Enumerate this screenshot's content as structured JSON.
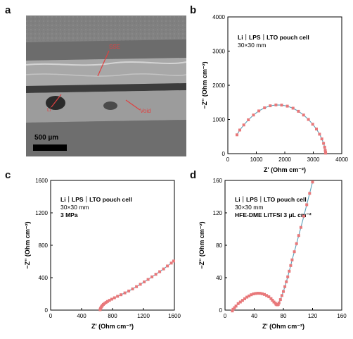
{
  "panels": {
    "a": {
      "letter": "a",
      "labels": {
        "sse": "SSE",
        "void": "Void",
        "li": "Li"
      },
      "scale_bar": "500 µm"
    },
    "b": {
      "letter": "b"
    },
    "c": {
      "letter": "c"
    },
    "d": {
      "letter": "d"
    }
  },
  "colors": {
    "marker": "#e8787a",
    "fit_line": "#5aa0b8",
    "sem_label": "#e04040"
  },
  "chart_data": [
    {
      "id": "b",
      "type": "scatter",
      "annotation_lines": [
        "Li｜LPS｜LTO pouch cell",
        "30×30 mm"
      ],
      "xlabel": "Z' (Ohm cm⁻²)",
      "ylabel": "−Z'' (Ohm cm⁻²)",
      "xlim": [
        0,
        4000
      ],
      "ylim": [
        0,
        4000
      ],
      "xticks": [
        0,
        1000,
        2000,
        3000,
        4000
      ],
      "yticks": [
        0,
        1000,
        2000,
        3000,
        4000
      ],
      "x": [
        320,
        420,
        560,
        720,
        900,
        1090,
        1290,
        1490,
        1690,
        1890,
        2090,
        2290,
        2480,
        2660,
        2830,
        2980,
        3110,
        3220,
        3300,
        3360,
        3400,
        3420,
        3430,
        3435
      ],
      "y": [
        550,
        690,
        840,
        990,
        1130,
        1250,
        1340,
        1400,
        1425,
        1420,
        1390,
        1330,
        1240,
        1130,
        1000,
        860,
        720,
        570,
        430,
        300,
        190,
        100,
        45,
        15
      ]
    },
    {
      "id": "c",
      "type": "scatter",
      "annotation_lines": [
        "Li｜LPS｜LTO pouch cell",
        "30×30 mm",
        "3 MPa"
      ],
      "xlabel": "Z' (Ohm cm⁻²)",
      "ylabel": "−Z'' (Ohm cm⁻²)",
      "xlim": [
        0,
        1600
      ],
      "ylim": [
        0,
        1600
      ],
      "xticks": [
        0,
        400,
        800,
        1200,
        1600
      ],
      "yticks": [
        0,
        400,
        800,
        1200,
        1600
      ],
      "x": [
        640,
        645,
        652,
        660,
        670,
        682,
        697,
        715,
        735,
        760,
        790,
        825,
        865,
        910,
        960,
        1010,
        1060,
        1110,
        1160,
        1210,
        1260,
        1310,
        1360,
        1410,
        1460,
        1510,
        1560,
        1590
      ],
      "y": [
        5,
        18,
        32,
        45,
        58,
        70,
        82,
        94,
        106,
        120,
        135,
        152,
        170,
        190,
        212,
        236,
        262,
        290,
        318,
        348,
        378,
        410,
        442,
        474,
        508,
        544,
        580,
        605
      ]
    },
    {
      "id": "d",
      "type": "scatter",
      "annotation_lines": [
        "Li｜LPS｜LTO pouch cell",
        "30×30 mm",
        "HFE-DME LiTFSI 3 μL cm⁻²"
      ],
      "xlabel": "Z' (Ohm cm⁻²)",
      "ylabel": "−Z'' (Ohm cm⁻²)",
      "xlim": [
        0,
        160
      ],
      "ylim": [
        0,
        160
      ],
      "xticks": [
        0,
        40,
        80,
        120,
        160
      ],
      "yticks": [
        0,
        40,
        80,
        120,
        160
      ],
      "x": [
        10,
        11,
        13,
        15,
        18,
        21,
        24,
        27,
        30,
        33,
        36,
        39,
        42,
        45,
        48,
        51,
        54,
        57,
        60,
        63,
        65,
        67,
        69,
        70,
        71,
        72,
        73,
        74,
        76,
        78,
        80,
        82,
        84,
        86,
        88,
        90,
        92,
        95,
        98,
        101,
        104,
        108,
        112,
        116,
        120
      ],
      "y": [
        -1,
        1,
        3,
        5,
        8,
        10,
        12,
        14,
        16,
        17.5,
        19,
        20,
        20.5,
        20.8,
        20.7,
        20.2,
        19.3,
        18,
        16.4,
        14.2,
        12.2,
        10,
        8.5,
        7.2,
        6.6,
        6.5,
        7,
        9,
        13,
        18,
        23,
        29,
        35,
        41,
        48,
        55,
        62,
        72,
        82,
        92,
        102,
        116,
        130,
        144,
        158
      ]
    }
  ]
}
